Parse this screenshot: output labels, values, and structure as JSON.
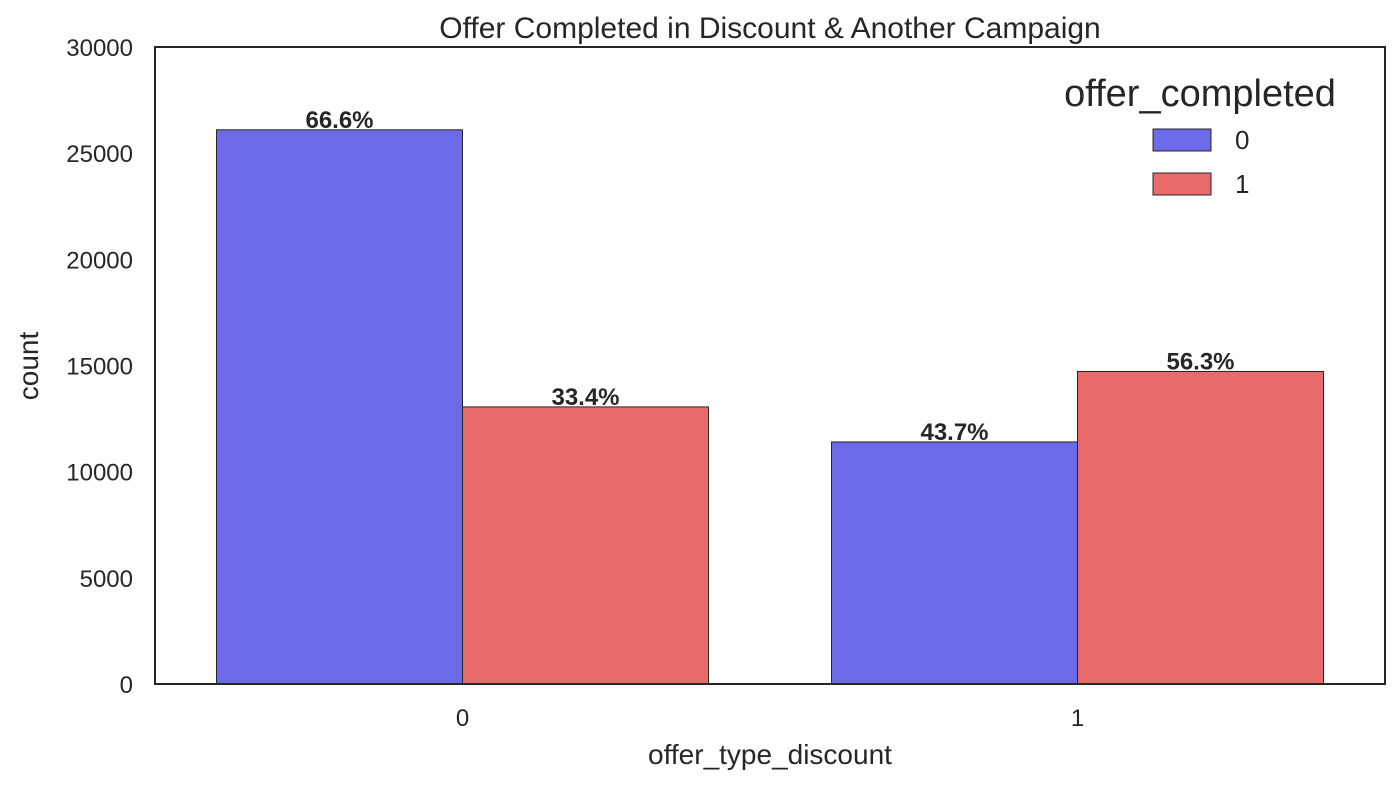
{
  "chart_data": {
    "type": "bar",
    "title": "Offer Completed in Discount & Another Campaign",
    "xlabel": "offer_type_discount",
    "ylabel": "count",
    "categories": [
      "0",
      "1"
    ],
    "ylim": [
      0,
      30000
    ],
    "yticks": [
      0,
      5000,
      10000,
      15000,
      20000,
      25000,
      30000
    ],
    "grid": false,
    "legend": {
      "title": "offer_completed",
      "placement": "top-right"
    },
    "series": [
      {
        "name": "0",
        "color": "#6b6ae9",
        "values": [
          26100,
          11400
        ],
        "labels": [
          "66.6%",
          "43.7%"
        ]
      },
      {
        "name": "1",
        "color": "#e96a6b",
        "values": [
          13050,
          14720
        ],
        "labels": [
          "33.4%",
          "56.3%"
        ]
      }
    ]
  }
}
